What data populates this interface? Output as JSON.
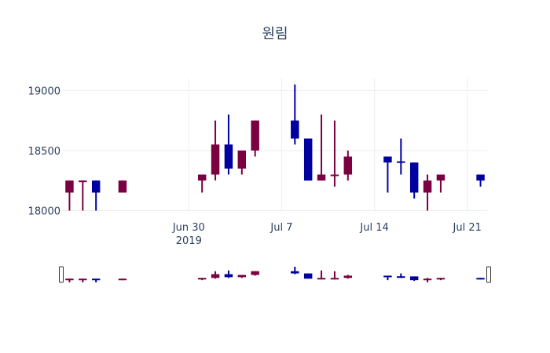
{
  "chart_data": {
    "type": "candlestick",
    "title": "원림",
    "xlabel": "",
    "ylabel": "",
    "ylim": [
      17990,
      19100
    ],
    "xlim": [
      "2019-06-20T12:00",
      "2019-07-22T12:00"
    ],
    "grid": true,
    "legend": "none",
    "rangeslider": true,
    "colors": {
      "increasing": "#0000a0",
      "decreasing": "#7b0041",
      "grid": "#eeeeee",
      "text": "#2a3f5f"
    },
    "y_ticks": [
      "18000",
      "18500",
      "19000"
    ],
    "x_ticks": [
      {
        "date": "2019-06-30",
        "label": "Jun 30",
        "sublabel": "2019"
      },
      {
        "date": "2019-07-07",
        "label": "Jul 7",
        "sublabel": ""
      },
      {
        "date": "2019-07-14",
        "label": "Jul 14",
        "sublabel": ""
      },
      {
        "date": "2019-07-21",
        "label": "Jul 21",
        "sublabel": ""
      }
    ],
    "candles": [
      {
        "date": "2019-06-21",
        "open": 18250,
        "high": 18250,
        "low": 18000,
        "close": 18150
      },
      {
        "date": "2019-06-22",
        "open": 18250,
        "high": 18250,
        "low": 18000,
        "close": 18240
      },
      {
        "date": "2019-06-23",
        "open": 18150,
        "high": 18250,
        "low": 18000,
        "close": 18250
      },
      {
        "date": "2019-06-25",
        "open": 18250,
        "high": 18250,
        "low": 18150,
        "close": 18150
      },
      {
        "date": "2019-07-01",
        "open": 18300,
        "high": 18300,
        "low": 18150,
        "close": 18250
      },
      {
        "date": "2019-07-02",
        "open": 18550,
        "high": 18750,
        "low": 18250,
        "close": 18300
      },
      {
        "date": "2019-07-03",
        "open": 18350,
        "high": 18800,
        "low": 18300,
        "close": 18550
      },
      {
        "date": "2019-07-04",
        "open": 18500,
        "high": 18500,
        "low": 18300,
        "close": 18350
      },
      {
        "date": "2019-07-05",
        "open": 18750,
        "high": 18750,
        "low": 18450,
        "close": 18500
      },
      {
        "date": "2019-07-08",
        "open": 18600,
        "high": 19050,
        "low": 18550,
        "close": 18750
      },
      {
        "date": "2019-07-09",
        "open": 18250,
        "high": 18600,
        "low": 18250,
        "close": 18600
      },
      {
        "date": "2019-07-10",
        "open": 18300,
        "high": 18800,
        "low": 18250,
        "close": 18250
      },
      {
        "date": "2019-07-11",
        "open": 18300,
        "high": 18750,
        "low": 18200,
        "close": 18290
      },
      {
        "date": "2019-07-12",
        "open": 18450,
        "high": 18500,
        "low": 18250,
        "close": 18300
      },
      {
        "date": "2019-07-15",
        "open": 18400,
        "high": 18450,
        "low": 18150,
        "close": 18450
      },
      {
        "date": "2019-07-16",
        "open": 18400,
        "high": 18600,
        "low": 18300,
        "close": 18410
      },
      {
        "date": "2019-07-17",
        "open": 18150,
        "high": 18400,
        "low": 18100,
        "close": 18400
      },
      {
        "date": "2019-07-18",
        "open": 18250,
        "high": 18300,
        "low": 18000,
        "close": 18150
      },
      {
        "date": "2019-07-19",
        "open": 18300,
        "high": 18300,
        "low": 18150,
        "close": 18250
      },
      {
        "date": "2019-07-22",
        "open": 18250,
        "high": 18300,
        "low": 18200,
        "close": 18300
      }
    ]
  }
}
